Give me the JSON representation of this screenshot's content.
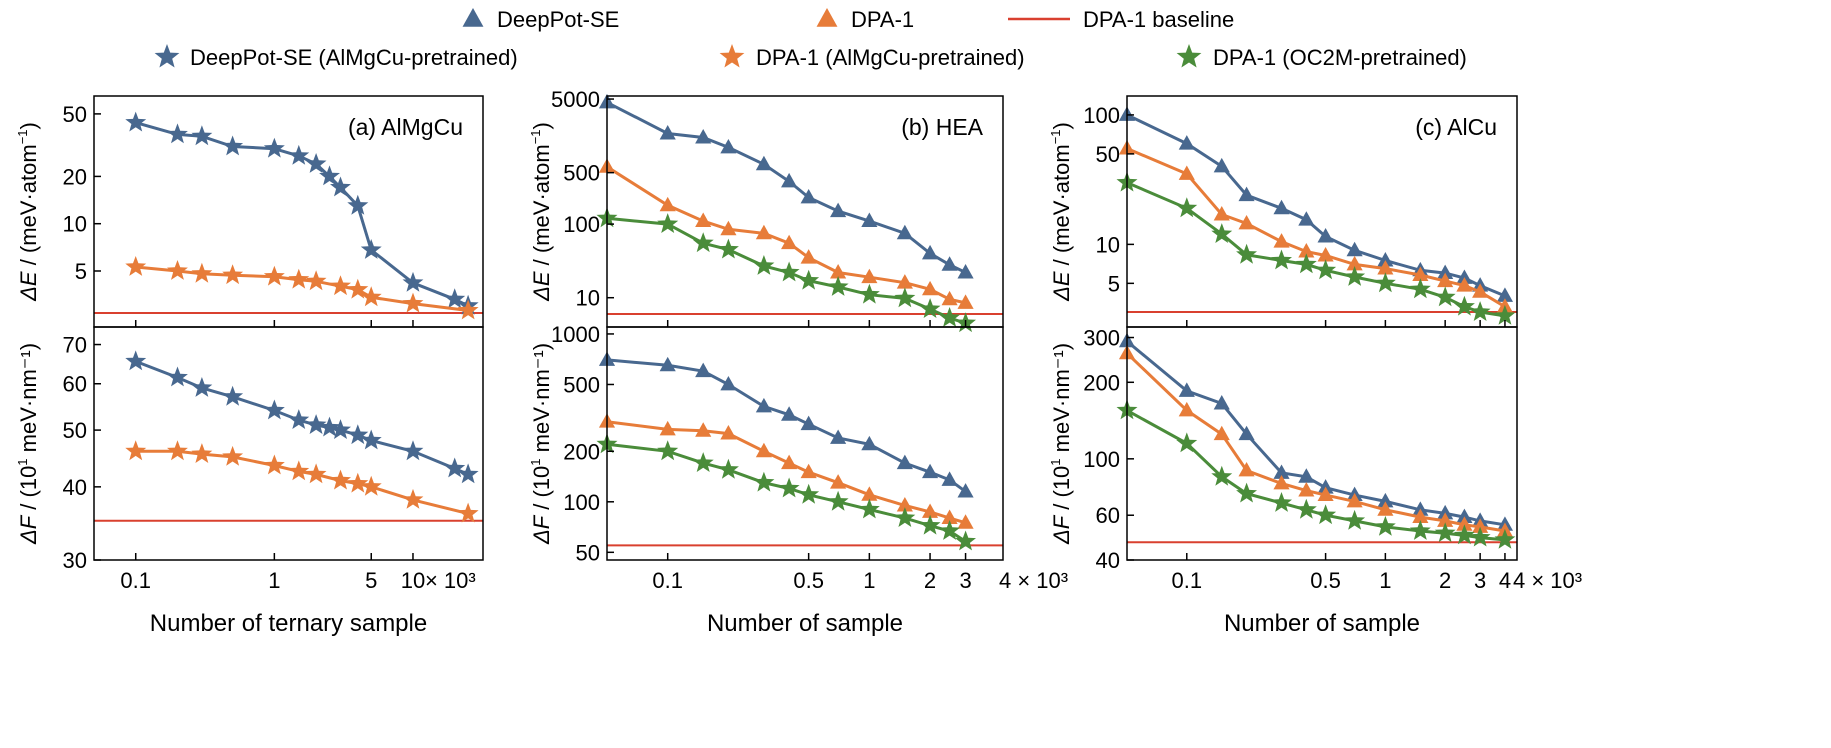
{
  "colors": {
    "deeppot": "#48688F",
    "dpa1": "#E77C39",
    "oc2m": "#4A8C3A",
    "baseline": "#D9402F"
  },
  "legend": [
    {
      "label": "DeepPot-SE",
      "marker": "triangle",
      "series": "deeppot"
    },
    {
      "label": "DPA-1",
      "marker": "triangle",
      "series": "dpa1"
    },
    {
      "label": "DPA-1 baseline",
      "marker": "line",
      "series": "baseline"
    },
    {
      "label": "DeepPot-SE (AlMgCu-pretrained)",
      "marker": "star",
      "series": "deeppot"
    },
    {
      "label": "DPA-1 (AlMgCu-pretrained)",
      "marker": "star",
      "series": "dpa1"
    },
    {
      "label": "DPA-1 (OC2M-pretrained)",
      "marker": "star",
      "series": "oc2m"
    }
  ],
  "chart_data": [
    {
      "type": "line",
      "title": "(a) AlMgCu",
      "xlabel": "Number of ternary sample",
      "x_unit_label": "× 10³",
      "xscale": "log",
      "x_ticks": [
        0.1,
        1,
        5,
        10
      ],
      "x_tick_labels": [
        "0.1",
        "1",
        "5",
        "10"
      ],
      "top": {
        "ylabel_prefix": "ΔE",
        "ylabel_suffix": " / (meV·atom",
        "ylabel_sup": "−1",
        "ylabel_end": ")",
        "yscale": "log",
        "ylim": [
          2.2,
          65
        ],
        "y_ticks": [
          5,
          10,
          20,
          50
        ],
        "baseline": 2.7,
        "series": [
          {
            "name": "DeepPot-SE (AlMgCu-pretrained)",
            "color": "deeppot",
            "marker": "star",
            "x": [
              0.1,
              0.2,
              0.3,
              0.5,
              1,
              1.5,
              2,
              2.5,
              3,
              4,
              5,
              10,
              20,
              25
            ],
            "y": [
              44,
              37,
              36,
              31,
              30,
              27,
              24,
              20,
              17,
              13,
              6.8,
              4.2,
              3.3,
              3.0
            ]
          },
          {
            "name": "DPA-1 (AlMgCu-pretrained)",
            "color": "dpa1",
            "marker": "star",
            "x": [
              0.1,
              0.2,
              0.3,
              0.5,
              1,
              1.5,
              2,
              3,
              4,
              5,
              10,
              25
            ],
            "y": [
              5.3,
              5.0,
              4.8,
              4.7,
              4.6,
              4.4,
              4.3,
              4.0,
              3.8,
              3.4,
              3.1,
              2.8
            ]
          }
        ]
      },
      "bottom": {
        "ylabel_prefix": "ΔF",
        "ylabel_suffix": " / (10",
        "ylabel_sup": "1",
        "ylabel_end": " meV·nm⁻¹)",
        "yscale": "log",
        "ylim": [
          30,
          75
        ],
        "y_ticks": [
          30,
          40,
          50,
          60,
          70
        ],
        "baseline": 35,
        "series": [
          {
            "name": "DeepPot-SE (AlMgCu-pretrained)",
            "color": "deeppot",
            "marker": "star",
            "x": [
              0.1,
              0.2,
              0.3,
              0.5,
              1,
              1.5,
              2,
              2.5,
              3,
              4,
              5,
              10,
              20,
              25
            ],
            "y": [
              65.5,
              61.5,
              59,
              57,
              54,
              52,
              51,
              50.5,
              50,
              49,
              48,
              46,
              43,
              42
            ]
          },
          {
            "name": "DPA-1 (AlMgCu-pretrained)",
            "color": "dpa1",
            "marker": "star",
            "x": [
              0.1,
              0.2,
              0.3,
              0.5,
              1,
              1.5,
              2,
              3,
              4,
              5,
              10,
              25
            ],
            "y": [
              46,
              46,
              45.5,
              45,
              43.5,
              42.5,
              42,
              41,
              40.5,
              40,
              38,
              36
            ]
          }
        ]
      }
    },
    {
      "type": "line",
      "title": "(b)  HEA",
      "xlabel": "Number of sample",
      "x_unit_label": "4 × 10³",
      "xscale": "log",
      "x_ticks": [
        0.1,
        0.5,
        1,
        2,
        3
      ],
      "x_tick_labels": [
        "0.1",
        "0.5",
        "1",
        "2",
        "3"
      ],
      "top": {
        "ylabel_prefix": "ΔE",
        "ylabel_suffix": " / (meV·atom",
        "ylabel_sup": "−1",
        "ylabel_end": ")",
        "yscale": "log",
        "ylim": [
          4,
          5500
        ],
        "y_ticks": [
          10,
          100,
          500,
          5000
        ],
        "baseline": 6,
        "series": [
          {
            "name": "DeepPot-SE",
            "color": "deeppot",
            "marker": "triangle",
            "x": [
              0.05,
              0.1,
              0.15,
              0.2,
              0.3,
              0.4,
              0.5,
              0.7,
              1,
              1.5,
              2,
              2.5,
              3
            ],
            "y": [
              4500,
              1700,
              1500,
              1100,
              650,
              380,
              230,
              150,
              110,
              75,
              40,
              28,
              22
            ]
          },
          {
            "name": "DPA-1",
            "color": "dpa1",
            "marker": "triangle",
            "x": [
              0.05,
              0.1,
              0.15,
              0.2,
              0.3,
              0.4,
              0.5,
              0.7,
              1,
              1.5,
              2,
              2.5,
              3
            ],
            "y": [
              600,
              180,
              110,
              85,
              75,
              55,
              35,
              22,
              19,
              16,
              13,
              9.5,
              8.5
            ]
          },
          {
            "name": "DPA-1 (OC2M-pretrained)",
            "color": "oc2m",
            "marker": "star",
            "x": [
              0.05,
              0.1,
              0.15,
              0.2,
              0.3,
              0.4,
              0.5,
              0.7,
              1,
              1.5,
              2,
              2.5,
              3
            ],
            "y": [
              120,
              100,
              55,
              45,
              27,
              22,
              17,
              14,
              11,
              9.8,
              7,
              5.3,
              4.5
            ]
          }
        ]
      },
      "bottom": {
        "ylabel_prefix": "ΔF",
        "ylabel_suffix": " / (10",
        "ylabel_sup": "1",
        "ylabel_end": " meV·nm⁻¹)",
        "yscale": "log",
        "ylim": [
          45,
          1100
        ],
        "y_ticks": [
          50,
          100,
          200,
          500,
          1000
        ],
        "baseline": 55,
        "series": [
          {
            "name": "DeepPot-SE",
            "color": "deeppot",
            "marker": "triangle",
            "x": [
              0.05,
              0.1,
              0.15,
              0.2,
              0.3,
              0.4,
              0.5,
              0.7,
              1,
              1.5,
              2,
              2.5,
              3
            ],
            "y": [
              700,
              650,
              600,
              500,
              370,
              330,
              290,
              240,
              220,
              170,
              150,
              135,
              115
            ]
          },
          {
            "name": "DPA-1",
            "color": "dpa1",
            "marker": "triangle",
            "x": [
              0.05,
              0.1,
              0.15,
              0.2,
              0.3,
              0.4,
              0.5,
              0.7,
              1,
              1.5,
              2,
              2.5,
              3
            ],
            "y": [
              300,
              270,
              265,
              255,
              200,
              170,
              150,
              130,
              110,
              95,
              87,
              80,
              75
            ]
          },
          {
            "name": "DPA-1 (OC2M-pretrained)",
            "color": "oc2m",
            "marker": "star",
            "x": [
              0.05,
              0.1,
              0.15,
              0.2,
              0.3,
              0.4,
              0.5,
              0.7,
              1,
              1.5,
              2,
              2.5,
              3
            ],
            "y": [
              220,
              200,
              170,
              155,
              130,
              120,
              110,
              100,
              90,
              80,
              72,
              67,
              58
            ]
          }
        ]
      }
    },
    {
      "type": "line",
      "title": "(c)  AlCu",
      "xlabel": "Number of sample",
      "x_unit_label": "4 × 10³",
      "xscale": "log",
      "x_ticks": [
        0.1,
        0.5,
        1,
        2,
        3,
        4
      ],
      "x_tick_labels": [
        "0.1",
        "0.5",
        "1",
        "2",
        "3",
        "4"
      ],
      "top": {
        "ylabel_prefix": "ΔE",
        "ylabel_suffix": " / (meV·atom",
        "ylabel_sup": "−1",
        "ylabel_end": ")",
        "yscale": "log",
        "ylim": [
          2.3,
          140
        ],
        "y_ticks": [
          5,
          10,
          50,
          100
        ],
        "baseline": 3,
        "series": [
          {
            "name": "DeepPot-SE",
            "color": "deeppot",
            "marker": "triangle",
            "x": [
              0.05,
              0.1,
              0.15,
              0.2,
              0.3,
              0.4,
              0.5,
              0.7,
              1,
              1.5,
              2,
              2.5,
              3,
              4
            ],
            "y": [
              100,
              60,
              40,
              24,
              19,
              15.5,
              11.5,
              9,
              7.5,
              6.3,
              6,
              5.5,
              4.8,
              4
            ]
          },
          {
            "name": "DPA-1",
            "color": "dpa1",
            "marker": "triangle",
            "x": [
              0.05,
              0.1,
              0.15,
              0.2,
              0.3,
              0.4,
              0.5,
              0.7,
              1,
              1.5,
              2,
              2.5,
              3,
              4
            ],
            "y": [
              55,
              35,
              17,
              14.5,
              10.5,
              8.8,
              8.2,
              7,
              6.5,
              5.8,
              5.2,
              4.8,
              4.3,
              3.3
            ]
          },
          {
            "name": "DPA-1 (OC2M-pretrained)",
            "color": "oc2m",
            "marker": "star",
            "x": [
              0.05,
              0.1,
              0.15,
              0.2,
              0.3,
              0.4,
              0.5,
              0.7,
              1,
              1.5,
              2,
              2.5,
              3,
              4
            ],
            "y": [
              30,
              19,
              12,
              8.3,
              7.5,
              7,
              6.3,
              5.6,
              5,
              4.5,
              3.9,
              3.3,
              3,
              2.8
            ]
          }
        ]
      },
      "bottom": {
        "ylabel_prefix": "ΔF",
        "ylabel_suffix": " / (10",
        "ylabel_sup": "1",
        "ylabel_end": " meV·nm⁻¹)",
        "yscale": "log",
        "ylim": [
          40,
          330
        ],
        "y_ticks": [
          40,
          60,
          100,
          200,
          300
        ],
        "baseline": 47,
        "series": [
          {
            "name": "DeepPot-SE",
            "color": "deeppot",
            "marker": "triangle",
            "x": [
              0.05,
              0.1,
              0.15,
              0.2,
              0.3,
              0.4,
              0.5,
              0.7,
              1,
              1.5,
              2,
              2.5,
              3,
              4
            ],
            "y": [
              290,
              185,
              165,
              125,
              88,
              85,
              77,
              72,
              68,
              63,
              61,
              59,
              57,
              55
            ]
          },
          {
            "name": "DPA-1",
            "color": "dpa1",
            "marker": "triangle",
            "x": [
              0.05,
              0.1,
              0.15,
              0.2,
              0.3,
              0.4,
              0.5,
              0.7,
              1,
              1.5,
              2,
              2.5,
              3,
              4
            ],
            "y": [
              260,
              155,
              125,
              90,
              80,
              75,
              72,
              68,
              63,
              59,
              57,
              55,
              54,
              52
            ]
          },
          {
            "name": "DPA-1 (OC2M-pretrained)",
            "color": "oc2m",
            "marker": "star",
            "x": [
              0.05,
              0.1,
              0.15,
              0.2,
              0.3,
              0.4,
              0.5,
              0.7,
              1,
              1.5,
              2,
              2.5,
              3,
              4
            ],
            "y": [
              155,
              115,
              85,
              73,
              67,
              63,
              60,
              57,
              54,
              52,
              51,
              50,
              49,
              48
            ]
          }
        ]
      }
    }
  ]
}
